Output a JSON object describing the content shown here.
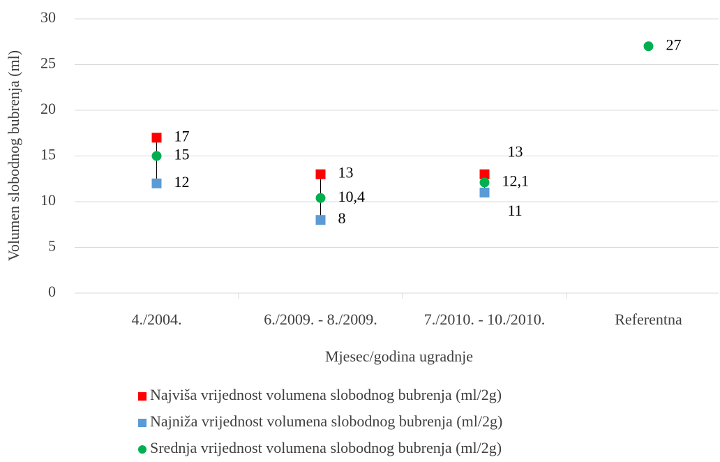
{
  "chart_data": {
    "type": "scatter",
    "x_label": "Mjesec/godina ugradnje",
    "y_label": "Volumen slobodnog bubrenja (ml)",
    "categories": [
      "4./2004.",
      "6./2009. - 8./2009.",
      "7./2010. - 10./2010.",
      "Referentna"
    ],
    "ylim": [
      0,
      30
    ],
    "yticks": [
      0,
      5,
      10,
      15,
      20,
      25,
      30
    ],
    "grid": true,
    "legend": "bottom",
    "series": [
      {
        "name": "Najviša vrijednost volumena slobodnog bubrenja (ml/2g)",
        "color": "#ff0000",
        "marker": "square",
        "values": [
          17,
          13,
          13,
          null
        ]
      },
      {
        "name": "Najniža vrijednost volumena slobodnog bubrenja (ml/2g)",
        "color": "#5b9bd5",
        "marker": "square",
        "values": [
          12,
          8,
          11,
          null
        ]
      },
      {
        "name": "Srednja vrijednost volumena slobodnog bubrenja (ml/2g)",
        "color": "#00b050",
        "marker": "circle",
        "values": [
          15,
          10.4,
          12.1,
          27
        ],
        "value_labels": [
          "15",
          "10,4",
          "12,1",
          "27"
        ]
      }
    ]
  }
}
